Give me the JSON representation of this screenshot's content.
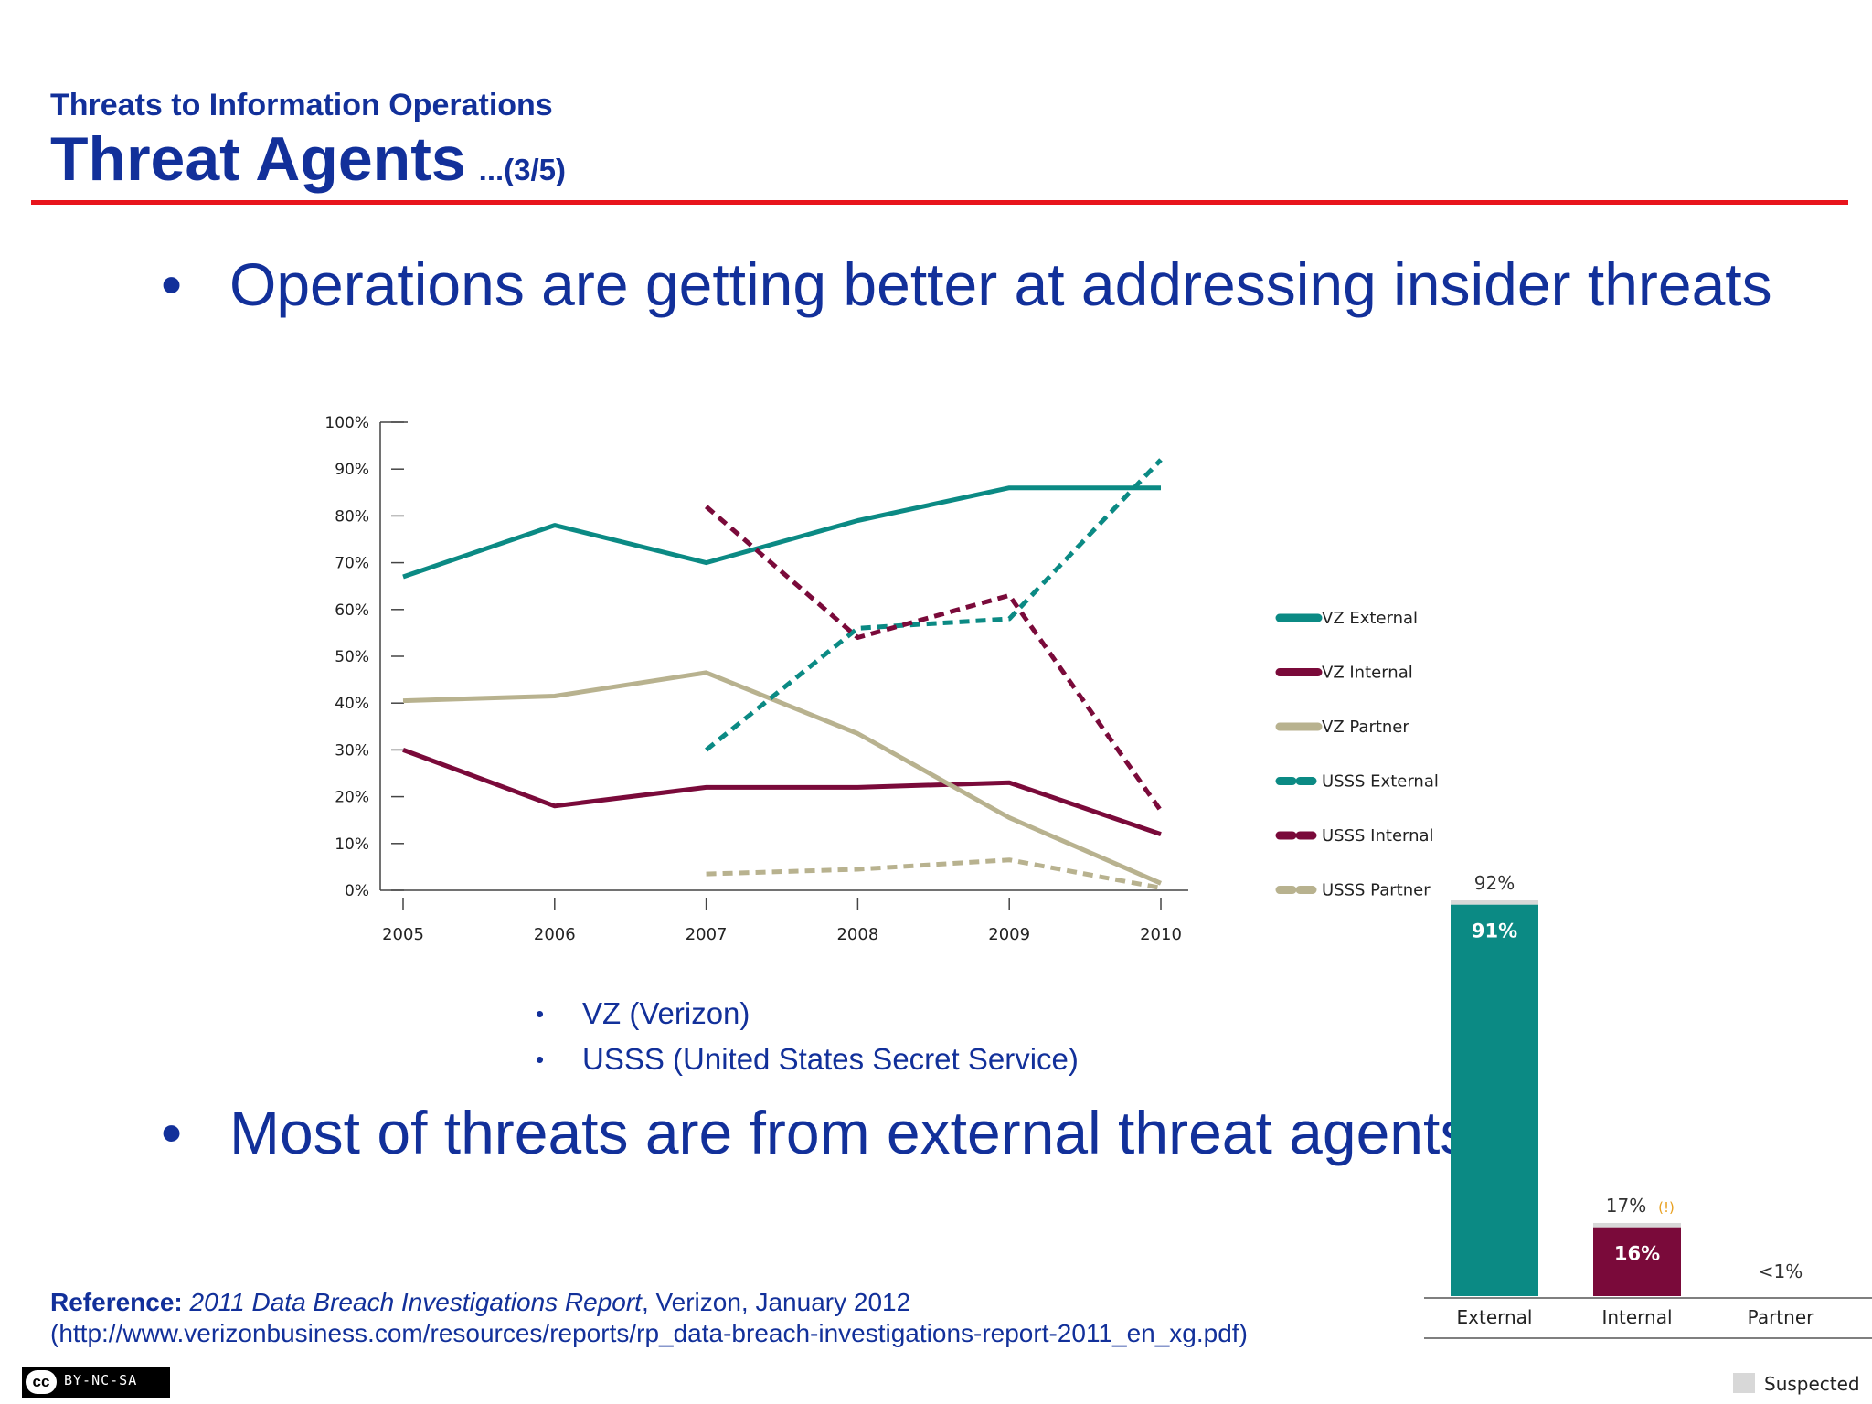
{
  "header": {
    "subtitle": "Threats to Information Operations",
    "title": "Threat Agents",
    "part": "...(3/5)"
  },
  "bullets": {
    "first": "Operations are getting better at addressing insider threats",
    "abbrev": [
      "VZ (Verizon)",
      "USSS (United States Secret Service)"
    ],
    "second": "Most of threats are from external threat agents"
  },
  "reference": {
    "label": "Reference:",
    "title": "2011 Data Breach Investigations Report",
    "publisher": ", Verizon, January 2012",
    "url": "(http://www.verizonbusiness.com/resources/reports/rp_data-breach-investigations-report-2011_en_xg.pdf)"
  },
  "license_badge": {
    "cc": "cc",
    "text": "BY-NC-SA"
  },
  "colors": {
    "accent": "#12309a",
    "rule": "#e8141c",
    "external": "#0b8a84",
    "internal": "#7a0a3a",
    "partner": "#b8b28f",
    "suspected": "#d8d8d8"
  },
  "chart_data": [
    {
      "type": "line",
      "title": "",
      "xlabel": "",
      "ylabel": "",
      "x": [
        2005,
        2006,
        2007,
        2008,
        2009,
        2010
      ],
      "ylim": [
        0,
        100
      ],
      "yticks": [
        "0%",
        "10%",
        "20%",
        "30%",
        "40%",
        "50%",
        "60%",
        "70%",
        "80%",
        "90%",
        "100%"
      ],
      "grid": false,
      "legend": "right",
      "series": [
        {
          "name": "VZ External",
          "style": "solid",
          "color": "#0b8a84",
          "values": [
            67,
            78,
            70,
            79,
            86,
            86
          ]
        },
        {
          "name": "VZ Internal",
          "style": "solid",
          "color": "#7a0a3a",
          "values": [
            30,
            18,
            22,
            22,
            23,
            12
          ]
        },
        {
          "name": "VZ Partner",
          "style": "solid",
          "color": "#b8b28f",
          "values": [
            40.5,
            41.5,
            46.5,
            33.5,
            15.5,
            1.5
          ]
        },
        {
          "name": "USSS External",
          "style": "dashed",
          "color": "#0b8a84",
          "values": [
            null,
            null,
            30,
            56,
            58,
            92
          ]
        },
        {
          "name": "USSS Internal",
          "style": "dashed",
          "color": "#7a0a3a",
          "values": [
            null,
            null,
            82,
            54,
            63,
            17
          ]
        },
        {
          "name": "USSS Partner",
          "style": "dashed",
          "color": "#b8b28f",
          "values": [
            null,
            null,
            3.5,
            4.5,
            6.5,
            0.5
          ]
        }
      ]
    },
    {
      "type": "bar",
      "title": "",
      "categories": [
        "External",
        "Internal",
        "Partner"
      ],
      "values": [
        91,
        16,
        0.5
      ],
      "suspected_values": [
        92,
        17,
        0.5
      ],
      "value_labels": [
        "91%",
        "16%",
        ""
      ],
      "total_labels": [
        "92%",
        "17%",
        "<1%"
      ],
      "warning_mark": [
        "",
        "(!)",
        ""
      ],
      "colors": [
        "#0b8a84",
        "#7a0a3a",
        "#b8b28f"
      ],
      "legend": [
        "Suspected"
      ],
      "ylim": [
        0,
        92
      ]
    }
  ]
}
